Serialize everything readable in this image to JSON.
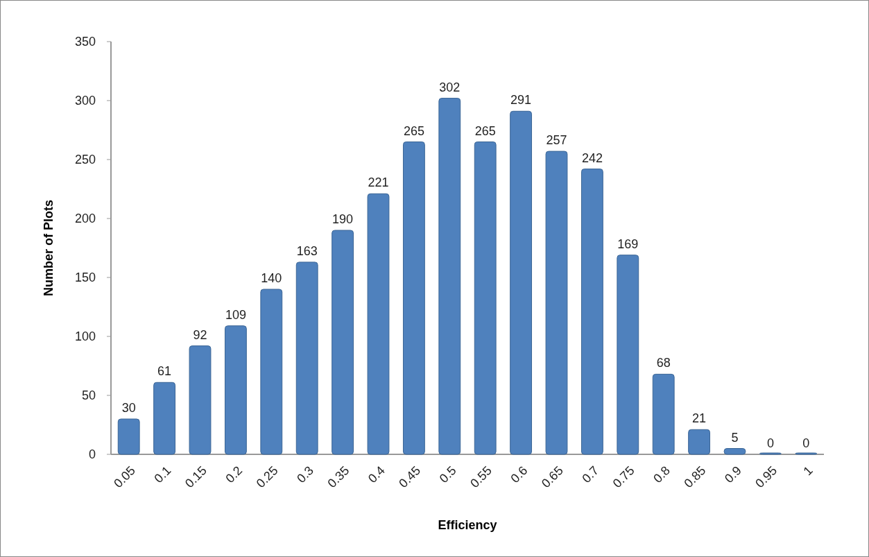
{
  "chart_data": {
    "type": "bar",
    "xlabel": "Efficiency",
    "ylabel": "Number of Plots",
    "categories": [
      "0.05",
      "0.1",
      "0.15",
      "0.2",
      "0.25",
      "0.3",
      "0.35",
      "0.4",
      "0.45",
      "0.5",
      "0.55",
      "0.6",
      "0.65",
      "0.7",
      "0.75",
      "0.8",
      "0.85",
      "0.9",
      "0.95",
      "1"
    ],
    "values": [
      30,
      61,
      92,
      109,
      140,
      163,
      190,
      221,
      265,
      302,
      265,
      291,
      257,
      242,
      169,
      68,
      21,
      5,
      0,
      0
    ],
    "color": "#4f81bd",
    "ylim": [
      0,
      350
    ],
    "yticks": [
      0,
      50,
      100,
      150,
      200,
      250,
      300,
      350
    ],
    "data_labels": true
  }
}
